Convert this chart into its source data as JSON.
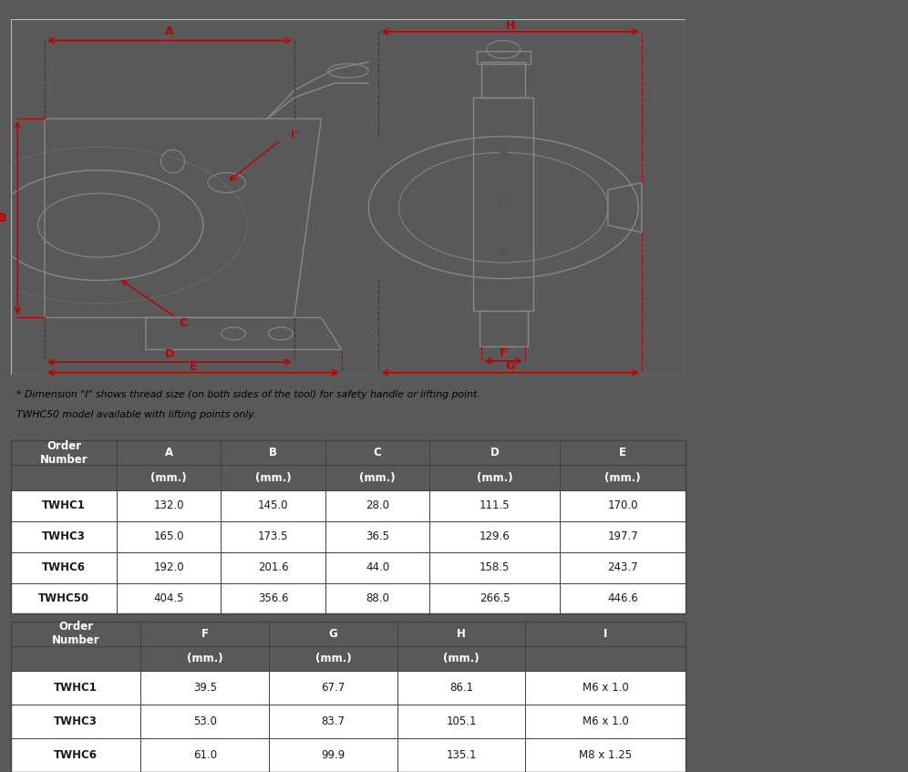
{
  "footnote_line1": "* Dimension \"I\" shows thread size (on both sides of the tool) for safety handle or lifting point.",
  "footnote_line2": "TWHC50 model available with lifting points only.",
  "header_bg": "#595959",
  "header_text_color": "#ffffff",
  "border_color": "#404040",
  "table1_col_letters": [
    "",
    "A",
    "B",
    "C",
    "D",
    "E"
  ],
  "table1_col_units": [
    "",
    "(mm.)",
    "(mm.)",
    "(mm.)",
    "(mm.)",
    "(mm.)"
  ],
  "table1_rows": [
    [
      "TWHC1",
      "132.0",
      "145.0",
      "28.0",
      "111.5",
      "170.0"
    ],
    [
      "TWHC3",
      "165.0",
      "173.5",
      "36.5",
      "129.6",
      "197.7"
    ],
    [
      "TWHC6",
      "192.0",
      "201.6",
      "44.0",
      "158.5",
      "243.7"
    ],
    [
      "TWHC50",
      "404.5",
      "356.6",
      "88.0",
      "266.5",
      "446.6"
    ]
  ],
  "table2_col_letters": [
    "",
    "F",
    "G",
    "H",
    "I"
  ],
  "table2_col_units": [
    "",
    "(mm.)",
    "(mm.)",
    "(mm.)",
    ""
  ],
  "table2_rows": [
    [
      "TWHC1",
      "39.5",
      "67.7",
      "86.1",
      "M6 x 1.0"
    ],
    [
      "TWHC3",
      "53.0",
      "83.7",
      "105.1",
      "M6 x 1.0"
    ],
    [
      "TWHC6",
      "61.0",
      "99.9",
      "135.1",
      "M8 x 1.25"
    ]
  ],
  "order_number_header": "Order\nNumber",
  "bg_dark": "#595959",
  "bg_white": "#ffffff",
  "red": "#c00000",
  "gray_line": "#aaaaaa",
  "dark_line": "#888888",
  "text_dark": "#1a1a1a"
}
